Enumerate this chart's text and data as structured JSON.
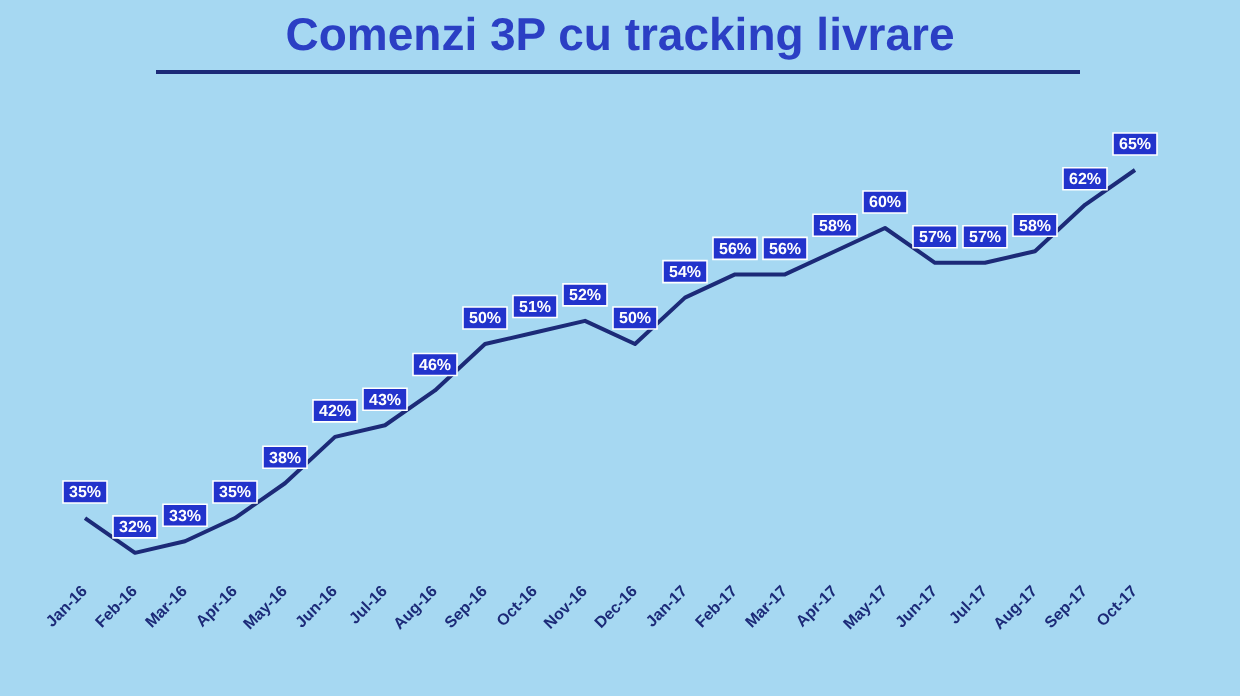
{
  "chart_data": {
    "type": "line",
    "title": "Comenzi 3P cu tracking livrare",
    "categories": [
      "Jan-16",
      "Feb-16",
      "Mar-16",
      "Apr-16",
      "May-16",
      "Jun-16",
      "Jul-16",
      "Aug-16",
      "Sep-16",
      "Oct-16",
      "Nov-16",
      "Dec-16",
      "Jan-17",
      "Feb-17",
      "Mar-17",
      "Apr-17",
      "May-17",
      "Jun-17",
      "Jul-17",
      "Aug-17",
      "Sep-17",
      "Oct-17"
    ],
    "series": [
      {
        "color": "#1c2a78",
        "values": [
          35,
          32,
          33,
          35,
          38,
          42,
          43,
          46,
          50,
          51,
          52,
          50,
          54,
          56,
          56,
          58,
          60,
          57,
          57,
          58,
          62,
          65
        ],
        "value_labels": [
          "35%",
          "32%",
          "33%",
          "35%",
          "38%",
          "42%",
          "43%",
          "46%",
          "50%",
          "51%",
          "52%",
          "50%",
          "54%",
          "56%",
          "56%",
          "58%",
          "60%",
          "57%",
          "57%",
          "58%",
          "62%",
          "65%"
        ]
      }
    ],
    "marker": "none",
    "grid": false,
    "legend": false,
    "tick_labels": "x"
  }
}
